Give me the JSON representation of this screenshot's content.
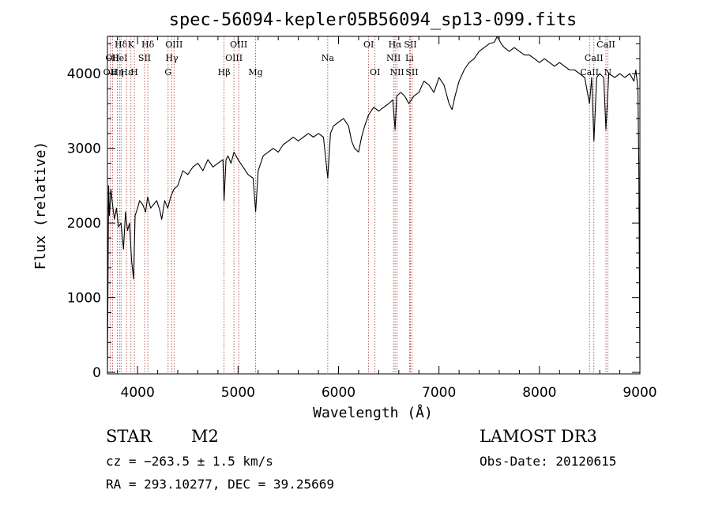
{
  "chart_data": {
    "type": "line",
    "title": "spec-56094-kepler05B56094_sp13-099.fits",
    "xlabel": "Wavelength (Å)",
    "ylabel": "Flux (relative)",
    "xlim": [
      3700,
      9000
    ],
    "ylim": [
      -20,
      4500
    ],
    "x_ticks": [
      4000,
      5000,
      6000,
      7000,
      8000,
      9000
    ],
    "y_ticks": [
      0,
      1000,
      2000,
      3000,
      4000
    ],
    "grid": false,
    "series": [
      {
        "color": "#000000",
        "points": [
          [
            3700,
            0
          ],
          [
            3705,
            1050
          ],
          [
            3712,
            2500
          ],
          [
            3720,
            2100
          ],
          [
            3735,
            2450
          ],
          [
            3750,
            2250
          ],
          [
            3770,
            2050
          ],
          [
            3790,
            2200
          ],
          [
            3810,
            1950
          ],
          [
            3835,
            2000
          ],
          [
            3860,
            1650
          ],
          [
            3880,
            2150
          ],
          [
            3900,
            1900
          ],
          [
            3920,
            2000
          ],
          [
            3940,
            1500
          ],
          [
            3960,
            1250
          ],
          [
            3975,
            2100
          ],
          [
            4000,
            2200
          ],
          [
            4020,
            2300
          ],
          [
            4050,
            2250
          ],
          [
            4080,
            2150
          ],
          [
            4100,
            2350
          ],
          [
            4130,
            2200
          ],
          [
            4160,
            2250
          ],
          [
            4190,
            2300
          ],
          [
            4220,
            2180
          ],
          [
            4240,
            2050
          ],
          [
            4270,
            2300
          ],
          [
            4300,
            2200
          ],
          [
            4330,
            2350
          ],
          [
            4360,
            2450
          ],
          [
            4400,
            2500
          ],
          [
            4450,
            2700
          ],
          [
            4500,
            2650
          ],
          [
            4550,
            2750
          ],
          [
            4600,
            2800
          ],
          [
            4650,
            2700
          ],
          [
            4700,
            2850
          ],
          [
            4750,
            2750
          ],
          [
            4800,
            2800
          ],
          [
            4850,
            2850
          ],
          [
            4861,
            2300
          ],
          [
            4880,
            2850
          ],
          [
            4900,
            2900
          ],
          [
            4930,
            2800
          ],
          [
            4960,
            2950
          ],
          [
            5000,
            2850
          ],
          [
            5050,
            2750
          ],
          [
            5100,
            2650
          ],
          [
            5150,
            2600
          ],
          [
            5175,
            2150
          ],
          [
            5200,
            2700
          ],
          [
            5250,
            2900
          ],
          [
            5300,
            2950
          ],
          [
            5350,
            3000
          ],
          [
            5400,
            2950
          ],
          [
            5450,
            3050
          ],
          [
            5500,
            3100
          ],
          [
            5550,
            3150
          ],
          [
            5600,
            3100
          ],
          [
            5650,
            3150
          ],
          [
            5700,
            3200
          ],
          [
            5750,
            3150
          ],
          [
            5800,
            3200
          ],
          [
            5850,
            3150
          ],
          [
            5893,
            2600
          ],
          [
            5920,
            3200
          ],
          [
            5950,
            3300
          ],
          [
            6000,
            3350
          ],
          [
            6050,
            3400
          ],
          [
            6100,
            3300
          ],
          [
            6130,
            3100
          ],
          [
            6160,
            3000
          ],
          [
            6200,
            2950
          ],
          [
            6230,
            3150
          ],
          [
            6260,
            3300
          ],
          [
            6300,
            3450
          ],
          [
            6350,
            3550
          ],
          [
            6400,
            3500
          ],
          [
            6450,
            3550
          ],
          [
            6500,
            3600
          ],
          [
            6540,
            3650
          ],
          [
            6563,
            3250
          ],
          [
            6580,
            3700
          ],
          [
            6620,
            3750
          ],
          [
            6660,
            3700
          ],
          [
            6700,
            3600
          ],
          [
            6750,
            3700
          ],
          [
            6800,
            3750
          ],
          [
            6850,
            3900
          ],
          [
            6900,
            3850
          ],
          [
            6950,
            3750
          ],
          [
            7000,
            3950
          ],
          [
            7050,
            3850
          ],
          [
            7100,
            3600
          ],
          [
            7130,
            3520
          ],
          [
            7160,
            3700
          ],
          [
            7200,
            3900
          ],
          [
            7250,
            4050
          ],
          [
            7300,
            4150
          ],
          [
            7350,
            4200
          ],
          [
            7400,
            4300
          ],
          [
            7450,
            4350
          ],
          [
            7500,
            4400
          ],
          [
            7550,
            4420
          ],
          [
            7580,
            4500
          ],
          [
            7620,
            4400
          ],
          [
            7650,
            4350
          ],
          [
            7700,
            4300
          ],
          [
            7750,
            4350
          ],
          [
            7800,
            4300
          ],
          [
            7850,
            4250
          ],
          [
            7900,
            4250
          ],
          [
            7950,
            4200
          ],
          [
            8000,
            4150
          ],
          [
            8050,
            4200
          ],
          [
            8100,
            4150
          ],
          [
            8150,
            4100
          ],
          [
            8200,
            4150
          ],
          [
            8250,
            4100
          ],
          [
            8300,
            4050
          ],
          [
            8350,
            4050
          ],
          [
            8400,
            4000
          ],
          [
            8450,
            3950
          ],
          [
            8498,
            3600
          ],
          [
            8520,
            3950
          ],
          [
            8542,
            3100
          ],
          [
            8570,
            3950
          ],
          [
            8600,
            4000
          ],
          [
            8640,
            3950
          ],
          [
            8662,
            3250
          ],
          [
            8690,
            4000
          ],
          [
            8750,
            3950
          ],
          [
            8800,
            4000
          ],
          [
            8850,
            3950
          ],
          [
            8900,
            4000
          ],
          [
            8940,
            3900
          ],
          [
            8960,
            4050
          ],
          [
            8980,
            3800
          ],
          [
            8990,
            2700
          ],
          [
            9000,
            100
          ]
        ]
      }
    ],
    "lines": [
      {
        "wave": 3727,
        "color": "#b03030",
        "labels": [
          {
            "text": "OII",
            "row": 2
          }
        ]
      },
      {
        "wave": 3750,
        "color": "#b03030",
        "labels": [
          {
            "text": "OII",
            "row": 1
          }
        ]
      },
      {
        "wave": 3798,
        "color": "#b03030",
        "labels": [
          {
            "text": "Hη",
            "row": 2
          }
        ]
      },
      {
        "wave": 3820,
        "color": "#b03030",
        "labels": [
          {
            "text": "HeI",
            "row": 1
          }
        ]
      },
      {
        "wave": 3835,
        "color": "#b03030",
        "labels": [
          {
            "text": "Hδ",
            "row": 0
          }
        ]
      },
      {
        "wave": 3889,
        "color": "#b03030",
        "labels": [
          {
            "text": "Hε",
            "row": 2
          }
        ]
      },
      {
        "wave": 3934,
        "color": "#b03030",
        "labels": [
          {
            "text": "K",
            "row": 0
          }
        ]
      },
      {
        "wave": 3968,
        "color": "#b03030",
        "labels": [
          {
            "text": "H",
            "row": 2
          }
        ]
      },
      {
        "wave": 4070,
        "color": "#b03030",
        "labels": [
          {
            "text": "SII",
            "row": 1
          }
        ]
      },
      {
        "wave": 4102,
        "color": "#b03030",
        "labels": [
          {
            "text": "Hδ",
            "row": 0
          }
        ]
      },
      {
        "wave": 4304,
        "color": "#b03030",
        "labels": [
          {
            "text": "G",
            "row": 2
          }
        ]
      },
      {
        "wave": 4341,
        "color": "#b03030",
        "labels": [
          {
            "text": "Hγ",
            "row": 1
          }
        ]
      },
      {
        "wave": 4363,
        "color": "#b03030",
        "labels": [
          {
            "text": "OIII",
            "row": 0
          }
        ]
      },
      {
        "wave": 4861,
        "color": "#b03030",
        "labels": [
          {
            "text": "Hβ",
            "row": 2
          }
        ]
      },
      {
        "wave": 4959,
        "color": "#b03030",
        "labels": [
          {
            "text": "OIII",
            "row": 1
          }
        ]
      },
      {
        "wave": 5007,
        "color": "#b03030",
        "labels": [
          {
            "text": "OIII",
            "row": 0
          }
        ]
      },
      {
        "wave": 5175,
        "color": "#b03030",
        "labels": [
          {
            "text": "Mg",
            "row": 2
          }
        ]
      },
      {
        "wave": 5893,
        "color": "#b03030",
        "labels": [
          {
            "text": "Na",
            "row": 1
          }
        ]
      },
      {
        "wave": 6300,
        "color": "#b03030",
        "labels": [
          {
            "text": "OI",
            "row": 0
          }
        ]
      },
      {
        "wave": 6363,
        "color": "#b03030",
        "labels": [
          {
            "text": "OI",
            "row": 2
          }
        ]
      },
      {
        "wave": 6548,
        "color": "#b03030",
        "labels": [
          {
            "text": "NII",
            "row": 1
          }
        ]
      },
      {
        "wave": 6563,
        "color": "#b03030",
        "labels": [
          {
            "text": "Hα",
            "row": 0
          }
        ]
      },
      {
        "wave": 6583,
        "color": "#b03030",
        "labels": [
          {
            "text": "NII",
            "row": 2
          }
        ]
      },
      {
        "wave": 6707,
        "color": "#b03030",
        "labels": [
          {
            "text": "Li",
            "row": 1
          }
        ]
      },
      {
        "wave": 6716,
        "color": "#b03030",
        "labels": [
          {
            "text": "SII",
            "row": 0
          }
        ]
      },
      {
        "wave": 6731,
        "color": "#b03030",
        "labels": [
          {
            "text": "SII",
            "row": 2
          }
        ]
      },
      {
        "wave": 8498,
        "color": "#b03030",
        "labels": [
          {
            "text": "CaII",
            "row": 2
          }
        ]
      },
      {
        "wave": 8542,
        "color": "#b03030",
        "labels": [
          {
            "text": "CaII",
            "row": 1
          }
        ]
      },
      {
        "wave": 8662,
        "color": "#b03030",
        "labels": [
          {
            "text": "CaII",
            "row": 0
          }
        ]
      },
      {
        "wave": 8680,
        "color": "#b03030",
        "labels": [
          {
            "text": "N",
            "row": 2
          }
        ]
      }
    ]
  },
  "info": {
    "class": "STAR",
    "subclass": "M2",
    "survey": "LAMOST DR3",
    "cz": "cz = −263.5 ± 1.5 km/s",
    "obs_date": "Obs-Date: 20120615",
    "coords": "RA = 293.10277, DEC =  39.25669"
  }
}
